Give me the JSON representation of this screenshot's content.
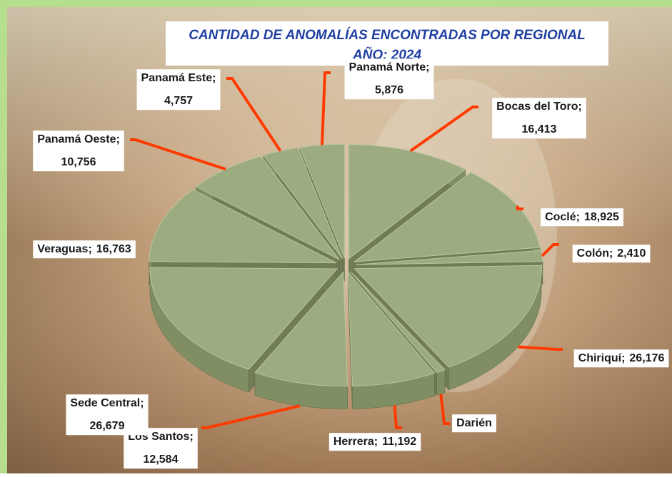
{
  "chart_data": {
    "type": "pie3d",
    "title": "CANTIDAD DE ANOMALÍAS ENCONTRADAS POR REGIONAL",
    "subtitle": "AÑO: 2024",
    "label_separator": ";",
    "categories": [
      "Bocas del Toro",
      "Coclé",
      "Colón",
      "Chiriquí",
      "Darién",
      "Herrera",
      "Los Santos",
      "Sede Central",
      "Veraguas",
      "Panamá Oeste",
      "Panamá Este",
      "Panamá Norte"
    ],
    "values": [
      16413,
      18925,
      2410,
      26176,
      1200,
      11192,
      12584,
      26679,
      16763,
      10756,
      4757,
      5876
    ],
    "value_labels": [
      "16,413",
      "18,925",
      "2,410",
      "26,176",
      null,
      "11,192",
      "12,584",
      "26,679",
      "16,763",
      "10,756",
      "4,757",
      "5,876"
    ],
    "color": "#9cab80",
    "leader_color": "#ff3a00"
  }
}
